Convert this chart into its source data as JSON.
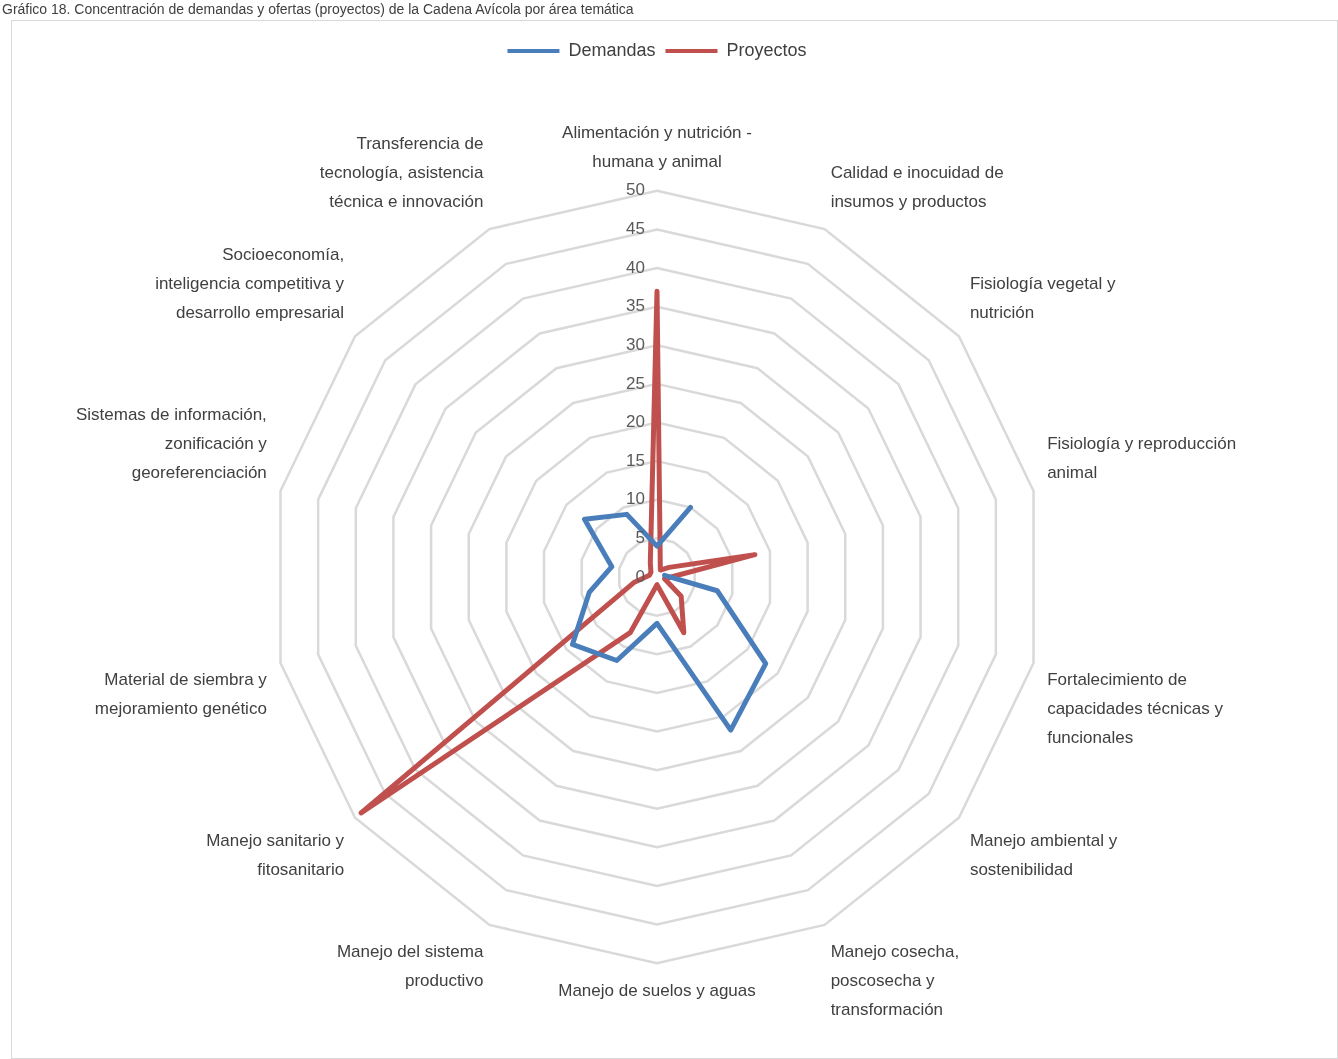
{
  "chart_data": {
    "type": "radar",
    "title": "Gráfico 18. Concentración de demandas y ofertas (proyectos) de la Cadena Avícola por área temática",
    "categories": [
      "Alimentación y nutrición - humana y animal",
      "Calidad e inocuidad de insumos y productos",
      "Fisiología vegetal y nutrición",
      "Fisiología y reproducción animal",
      "Fortalecimiento de capacidades técnicas y funcionales",
      "Manejo ambiental y sostenibilidad",
      "Manejo cosecha, poscosecha y transformación",
      "Manejo de suelos y aguas",
      "Manejo del sistema productivo",
      "Manejo sanitario y fitosanitario",
      "Material de siembra y mejoramiento genético",
      "Sistemas de información, zonificación y georeferenciación",
      "Socioeconomía, inteligencia competitiva y desarrollo empresarial",
      "Transferencia de tecnología, asistencia técnica e innovación"
    ],
    "series": [
      {
        "name": "Demandas",
        "color": "#4a7ebb",
        "values": [
          4,
          10,
          null,
          1,
          8,
          18,
          22,
          6,
          12,
          14,
          9,
          6,
          12,
          9
        ]
      },
      {
        "name": "Proyectos",
        "color": "#c0504d",
        "values": [
          37,
          1,
          2,
          13,
          1,
          4,
          8,
          1,
          8,
          49,
          3,
          1,
          1,
          2
        ]
      }
    ],
    "ylim": [
      0,
      50
    ],
    "yticks": [
      0,
      5,
      10,
      15,
      20,
      25,
      30,
      35,
      40,
      45,
      50
    ],
    "grid": true,
    "legend": "top",
    "marker": "none"
  }
}
